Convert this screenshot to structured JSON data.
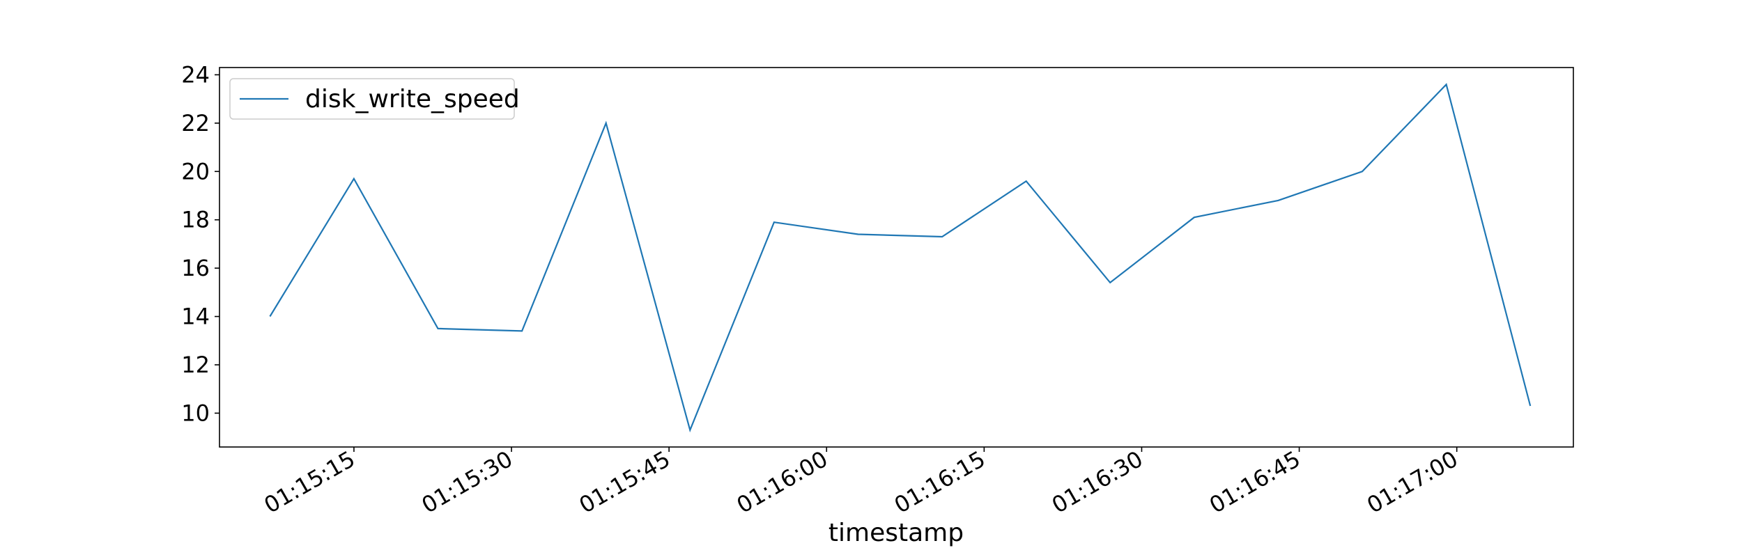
{
  "chart_data": {
    "type": "line",
    "title": "",
    "xlabel": "timestamp",
    "ylabel": "",
    "x": [
      "01:15:07",
      "01:15:15",
      "01:15:23",
      "01:15:31",
      "01:15:39",
      "01:15:47",
      "01:15:55",
      "01:16:03",
      "01:16:11",
      "01:16:19",
      "01:16:27",
      "01:16:35",
      "01:16:43",
      "01:16:51",
      "01:16:59",
      "01:17:07"
    ],
    "x_tick_labels": [
      "01:15:15",
      "01:15:30",
      "01:15:45",
      "01:16:00",
      "01:16:15",
      "01:16:30",
      "01:16:45",
      "01:17:00"
    ],
    "y_ticks": [
      10,
      12,
      14,
      16,
      18,
      20,
      22,
      24
    ],
    "ylim": [
      8.6,
      24.3
    ],
    "xlim": [
      "01:15:02.2",
      "01:17:11.1"
    ],
    "grid": false,
    "legend": "top-left",
    "series": [
      {
        "name": "disk_write_speed",
        "color": "#1f77b4",
        "values": [
          14.0,
          19.7,
          13.5,
          13.4,
          22.0,
          9.3,
          17.9,
          17.4,
          17.3,
          19.6,
          15.4,
          18.1,
          18.8,
          20.0,
          23.6,
          10.3
        ]
      }
    ]
  }
}
